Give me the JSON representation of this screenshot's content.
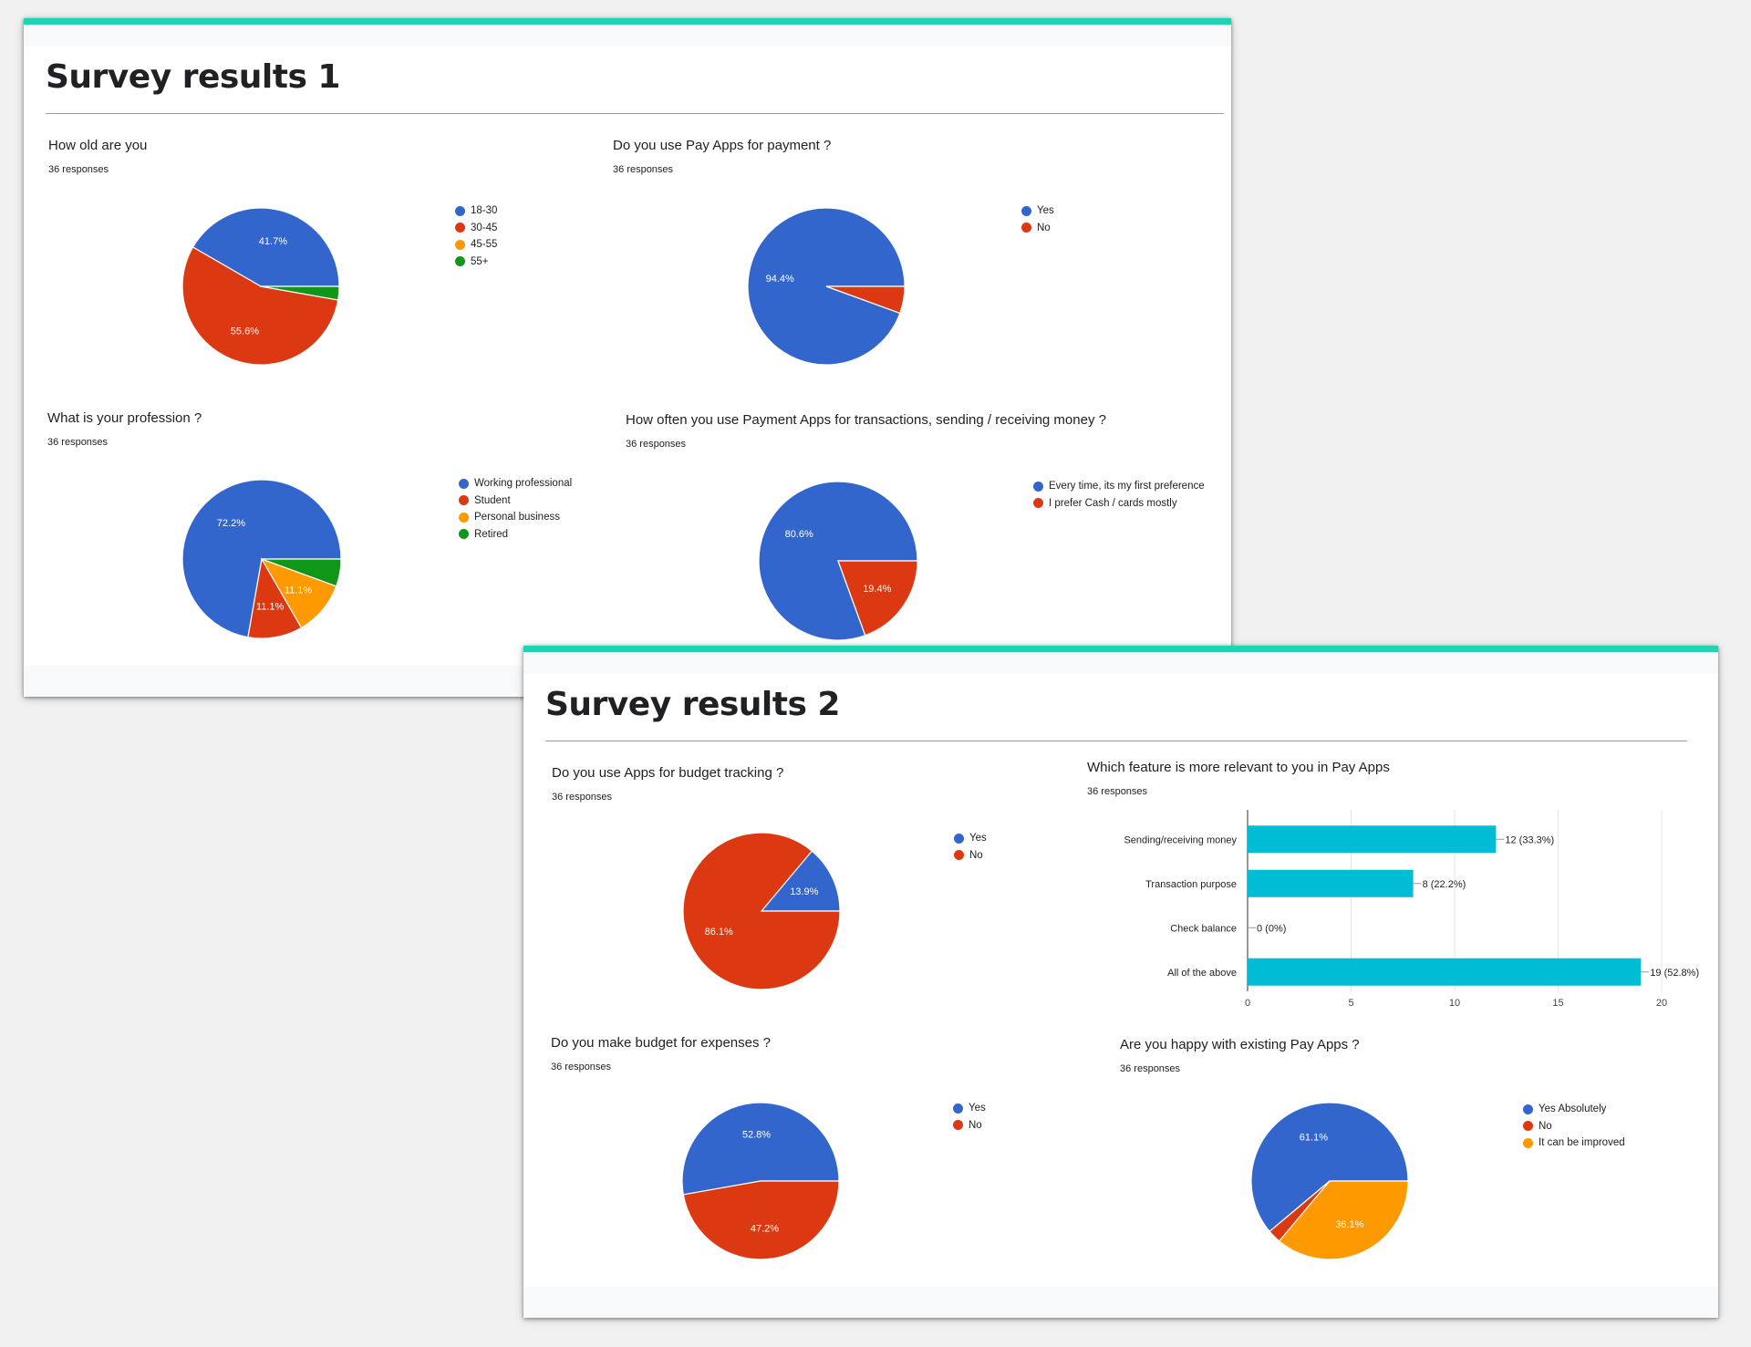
{
  "cards": [
    {
      "title": "Survey results 1",
      "questions": [
        {
          "text": "How old are you",
          "responses": "36 responses"
        },
        {
          "text": "Do you use Pay Apps for payment ?",
          "responses": "36 responses"
        },
        {
          "text": "What is your profession ?",
          "responses": "36 responses"
        },
        {
          "text": "How often you use Payment Apps for transactions, sending / receiving money ?",
          "responses": "36 responses"
        }
      ]
    },
    {
      "title": "Survey results 2",
      "questions": [
        {
          "text": "Do you use Apps for budget tracking ?",
          "responses": "36 responses"
        },
        {
          "text": "Which feature is more relevant to you in Pay Apps",
          "responses": "36 responses"
        },
        {
          "text": "Do you make budget for expenses ?",
          "responses": "36 responses"
        },
        {
          "text": "Are you happy with existing Pay Apps ?",
          "responses": "36 responses"
        }
      ]
    }
  ],
  "colors": {
    "blue": "#3366cc",
    "red": "#dc3912",
    "orange": "#ff9900",
    "green": "#109618",
    "teal": "#00bcd4",
    "accent": "#1fd3b3"
  },
  "chart_data": [
    {
      "type": "pie",
      "categories": [
        "18-30",
        "30-45",
        "45-55",
        "55+"
      ],
      "values": [
        15,
        20,
        0,
        1
      ],
      "labels": [
        "41.7%",
        "55.6%",
        "",
        ""
      ],
      "colors": [
        "#3366cc",
        "#dc3912",
        "#ff9900",
        "#109618"
      ],
      "legend": "right"
    },
    {
      "type": "pie",
      "categories": [
        "Yes",
        "No"
      ],
      "values": [
        34,
        2
      ],
      "labels": [
        "94.4%",
        ""
      ],
      "colors": [
        "#3366cc",
        "#dc3912"
      ],
      "legend": "right"
    },
    {
      "type": "pie",
      "categories": [
        "Working professional",
        "Student",
        "Personal business",
        "Retired"
      ],
      "values": [
        26,
        4,
        4,
        2
      ],
      "labels": [
        "72.2%",
        "11.1%",
        "11.1%",
        ""
      ],
      "colors": [
        "#3366cc",
        "#dc3912",
        "#ff9900",
        "#109618"
      ],
      "legend": "right"
    },
    {
      "type": "pie",
      "categories": [
        "Every time, its my first preference",
        "I prefer Cash / cards mostly"
      ],
      "values": [
        29,
        7
      ],
      "labels": [
        "80.6%",
        "19.4%"
      ],
      "colors": [
        "#3366cc",
        "#dc3912"
      ],
      "legend": "right"
    },
    {
      "type": "pie",
      "categories": [
        "Yes",
        "No"
      ],
      "values": [
        5,
        31
      ],
      "labels": [
        "13.9%",
        "86.1%"
      ],
      "colors": [
        "#3366cc",
        "#dc3912"
      ],
      "legend": "right"
    },
    {
      "type": "bar",
      "orientation": "horizontal",
      "categories": [
        "Sending/receiving money",
        "Transaction purpose",
        "Check balance",
        "All of the above"
      ],
      "values": [
        12,
        8,
        0,
        19
      ],
      "labels": [
        "12 (33.3%)",
        "8 (22.2%)",
        "0 (0%)",
        "19 (52.8%)"
      ],
      "xlim": [
        0,
        20
      ],
      "ticks": [
        0,
        5,
        10,
        15,
        20
      ],
      "grid": true,
      "color": "#00bcd4"
    },
    {
      "type": "pie",
      "categories": [
        "Yes",
        "No"
      ],
      "values": [
        19,
        17
      ],
      "labels": [
        "52.8%",
        "47.2%"
      ],
      "colors": [
        "#3366cc",
        "#dc3912"
      ],
      "legend": "right"
    },
    {
      "type": "pie",
      "categories": [
        "Yes Absolutely",
        "No",
        "It can be improved"
      ],
      "values": [
        22,
        1,
        13
      ],
      "labels": [
        "61.1%",
        "",
        "36.1%"
      ],
      "colors": [
        "#3366cc",
        "#dc3912",
        "#ff9900"
      ],
      "legend": "right"
    }
  ]
}
